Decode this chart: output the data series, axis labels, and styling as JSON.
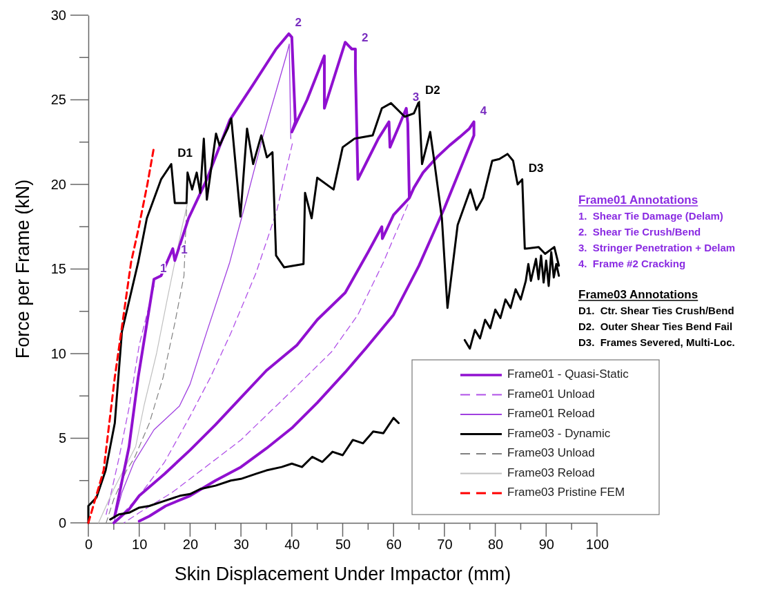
{
  "chart_data": [
    {
      "type": "line",
      "xlabel": "Skin Displacement Under Impactor (mm)",
      "ylabel": "Force per Frame (kN)",
      "xlim": [
        0,
        100
      ],
      "ylim": [
        0,
        30
      ],
      "xticks": [
        0,
        {
          "value": 5,
          "label": null
        },
        10,
        {
          "value": 15,
          "label": null
        },
        20,
        {
          "value": 25,
          "label": null
        },
        30,
        {
          "value": 35,
          "label": null
        },
        40,
        {
          "value": 45,
          "label": null
        },
        50,
        {
          "value": 55,
          "label": null
        },
        60,
        {
          "value": 65,
          "label": null
        },
        70,
        {
          "value": 75,
          "label": null
        },
        80,
        {
          "value": 85,
          "label": null
        },
        90,
        {
          "value": 95,
          "label": null
        },
        100
      ],
      "yticks": [
        0,
        {
          "value": 2.5,
          "label": null
        },
        5,
        {
          "value": 7.5,
          "label": null
        },
        10,
        {
          "value": 12.5,
          "label": null
        },
        15,
        {
          "value": 17.5,
          "label": null
        },
        20,
        {
          "value": 22.5,
          "label": null
        },
        25,
        {
          "value": 27.5,
          "label": null
        },
        30
      ],
      "legend": "bottom right",
      "grid": false,
      "marker": "none",
      "series": [
        {
          "name": "Frame01 - Quasi-Static",
          "color": "#9010d0",
          "line_style": "solid",
          "x": [
            5.2,
            8.0,
            9.8,
            12.9,
            14.3,
            16.6,
            17.0,
            19.7,
            23.3,
            27.8,
            32.4,
            36.9,
            39.4,
            40.0,
            40.7,
            40.0,
            43,
            46.4,
            46.4,
            48.5,
            50.5,
            51.8,
            52.5,
            52.5,
            53.0,
            55,
            57,
            59.1,
            59.3,
            61,
            62.5,
            62.8,
            63.1,
            64,
            65.8,
            68.5,
            71,
            73,
            74.9,
            75.8,
            75.8,
            70,
            65,
            60,
            54.5,
            50.5,
            45,
            40,
            35,
            30,
            25,
            20,
            15.2,
            12,
            10,
            null,
            5,
            8,
            10,
            15,
            20,
            25,
            30,
            35,
            41,
            45,
            50.5,
            55,
            57.7,
            57.8,
            60,
            63.1
          ],
          "values": [
            0.4,
            4.5,
            8.6,
            14.4,
            14.6,
            16.2,
            15.5,
            18.0,
            20.3,
            23.8,
            25.9,
            28.0,
            28.9,
            28.7,
            23.7,
            23.1,
            25.0,
            27.6,
            24.5,
            26.5,
            28.4,
            28.0,
            28.0,
            26.8,
            20.3,
            21.5,
            22.7,
            23.7,
            22.2,
            23.4,
            24.5,
            23.6,
            19.2,
            19.8,
            20.7,
            21.6,
            22.3,
            22.8,
            23.3,
            23.7,
            22.9,
            18.6,
            15.2,
            12.3,
            10.3,
            8.9,
            7.1,
            5.6,
            4.4,
            3.3,
            2.5,
            1.6,
            1.0,
            0.4,
            0.1,
            null,
            0,
            0.8,
            1.6,
            2.9,
            4.3,
            5.8,
            7.4,
            9.0,
            10.5,
            12.0,
            13.6,
            16.0,
            17.5,
            16.8,
            18.2,
            19.2
          ]
        },
        {
          "name": "Frame01 Unload",
          "color": "#b050e8",
          "line_style": "dashed",
          "x": [
            12.9,
            10,
            8,
            6,
            4.5,
            3.5,
            null,
            40.1,
            37,
            33,
            28,
            24,
            20,
            15,
            10,
            6,
            null,
            62.8,
            58,
            53,
            47.8,
            40,
            30,
            20,
            16.5,
            10,
            7
          ],
          "values": [
            14.0,
            10.5,
            6.8,
            3.8,
            1.8,
            0.5,
            null,
            22.4,
            18.4,
            14.8,
            11.2,
            8.6,
            6.3,
            3.6,
            1.6,
            0.3,
            null,
            18.8,
            15.4,
            12.3,
            10.1,
            7.8,
            4.9,
            2.6,
            1.8,
            0.6,
            0
          ]
        },
        {
          "name": "Frame01 Reload",
          "color": "#a040e0",
          "line_style": "solid",
          "x": [
            5,
            6.6,
            9,
            12.9,
            17.9,
            20,
            23.3,
            27.8,
            31,
            34.2,
            37,
            38.9,
            39.5,
            39.8
          ],
          "values": [
            0,
            1.8,
            3.6,
            5.5,
            6.9,
            8.2,
            11.3,
            15.4,
            19,
            22.7,
            25.6,
            27.6,
            28.3,
            22.7
          ]
        },
        {
          "name": "Frame03 - Dynamic",
          "color": "#000000",
          "line_style": "solid",
          "x": [
            0,
            0,
            1.6,
            3.4,
            5.2,
            6.6,
            9.8,
            11.5,
            14.3,
            16.3,
            17.0,
            19.3,
            19.5,
            20.4,
            21.3,
            22.0,
            22.7,
            23.3,
            25.1,
            25.8,
            27.4,
            28.1,
            29.9,
            31.2,
            32.4,
            34.0,
            35.1,
            36.2,
            36.9,
            38.5,
            42.3,
            42.6,
            43.9,
            45.0,
            48.2,
            50.0,
            52.3,
            55.9,
            57.7,
            59.5,
            62.2,
            64.0,
            65.0,
            65.6,
            67.2,
            67.9,
            69.5,
            70.6,
            72.6,
            75.1,
            76.3,
            77.6,
            79.4,
            80.8,
            82.4,
            83.5,
            84.4,
            85.3,
            85.8,
            88.5,
            89.8,
            91.6,
            92.5,
            null,
            4.3,
            6,
            8,
            10,
            12,
            15,
            18,
            20,
            22,
            25,
            28,
            30,
            33,
            35,
            38,
            40,
            42,
            44,
            46,
            48,
            50,
            52,
            54,
            56,
            58,
            60,
            61,
            62,
            63,
            64,
            65,
            66,
            67,
            68,
            69,
            70,
            71,
            72,
            73,
            74,
            75,
            76,
            77,
            78,
            79,
            80,
            81,
            82,
            83,
            84,
            85,
            86,
            86.5,
            87,
            88,
            88.5,
            89,
            89.5,
            90,
            90.5,
            91,
            91.5,
            92,
            92.5
          ],
          "values": [
            0,
            1.0,
            1.5,
            3.1,
            5.9,
            11.3,
            15.4,
            18.0,
            20.3,
            21.2,
            18.9,
            18.9,
            20.7,
            19.7,
            20.7,
            19.5,
            22.7,
            19.1,
            23.0,
            22.3,
            23.3,
            23.9,
            18.1,
            23.3,
            21.2,
            22.9,
            21.6,
            21.9,
            15.8,
            15.1,
            15.3,
            19.5,
            18.0,
            20.4,
            19.7,
            22.2,
            22.7,
            22.9,
            24.5,
            24.8,
            24.0,
            24.2,
            24.9,
            21.2,
            23.1,
            21.6,
            18.0,
            12.7,
            17.6,
            19.7,
            18.5,
            19.2,
            21.4,
            21.5,
            21.8,
            21.4,
            20.0,
            20.3,
            16.2,
            16.3,
            15.9,
            16.3,
            15.2,
            null,
            0.2,
            0.5,
            0.6,
            0.9,
            1.0,
            1.3,
            1.6,
            1.7,
            2.0,
            2.2,
            2.5,
            2.6,
            2.9,
            3.1,
            3.3,
            3.5,
            3.3,
            3.9,
            3.6,
            4.2,
            4.0,
            4.9,
            4.7,
            5.4,
            5.3,
            6.2,
            5.9,
            null,
            null,
            null,
            null,
            null,
            null,
            null,
            null,
            null,
            null,
            null,
            null,
            10.8,
            10.3,
            11.4,
            10.9,
            12.0,
            11.5,
            12.6,
            12.1,
            13.2,
            12.7,
            13.8,
            13.2,
            14.3,
            15.3,
            14.3,
            15.6,
            14.4,
            15.8,
            14.2,
            15.5,
            14.0,
            16.0,
            14.5,
            15.3,
            14.6
          ]
        },
        {
          "name": "Frame03 Unload",
          "color": "#808080",
          "line_style": "dashed",
          "x": [
            19.3,
            18.8,
            17,
            14.7,
            12.0,
            9,
            7.5,
            5,
            3.5
          ],
          "values": [
            18.5,
            14.6,
            11.8,
            8.6,
            5.9,
            3.8,
            3.1,
            1.4,
            0
          ]
        },
        {
          "name": "Frame03 Reload",
          "color": "#c0c0c0",
          "line_style": "solid",
          "x": [
            2,
            5,
            9.3,
            11,
            13.4,
            15.5,
            17.0,
            18.5,
            19.5
          ],
          "values": [
            0,
            2,
            4.5,
            7,
            10.0,
            13.2,
            15.4,
            17.6,
            18.9
          ]
        },
        {
          "name": "Frame03 Pristine FEM",
          "color": "#ff0000",
          "line_style": "dashed",
          "x": [
            0,
            3.0,
            5.2,
            8.4,
            9.8,
            11.6,
            12.9
          ],
          "values": [
            0,
            3.1,
            8.6,
            15.4,
            17.3,
            20.0,
            22.2
          ]
        }
      ],
      "annotations": [
        {
          "text": "1",
          "x": 12.9,
          "y": 14.4
        },
        {
          "text": "1",
          "x": 17.0,
          "y": 15.5
        },
        {
          "text": "2",
          "x": 39.4,
          "y": 28.9
        },
        {
          "text": "2",
          "x": 52.5,
          "y": 28.0
        },
        {
          "text": "3",
          "x": 62.5,
          "y": 24.5
        },
        {
          "text": "4",
          "x": 75.8,
          "y": 23.7
        },
        {
          "text": "D1",
          "x": 16.3,
          "y": 21.2
        },
        {
          "text": "D2",
          "x": 65.0,
          "y": 24.9
        },
        {
          "text": "D3",
          "x": 85.3,
          "y": 20.3
        }
      ]
    },
    {
      "type": "other",
      "title": "Frame01 Annotations",
      "annotations": [
        "1.  Shear Tie Damage (Delam)",
        "2.  Shear Tie Crush/Bend",
        "3.  Stringer Penetration + Delam",
        "4.  Frame #2 Cracking"
      ]
    },
    {
      "type": "other",
      "title": "Frame03 Annotations",
      "annotations": [
        "D1.  Ctr. Shear Ties Crush/Bend",
        "D2.  Outer Shear Ties Bend Fail",
        "D3.  Frames Severed, Multi-Loc."
      ]
    }
  ]
}
